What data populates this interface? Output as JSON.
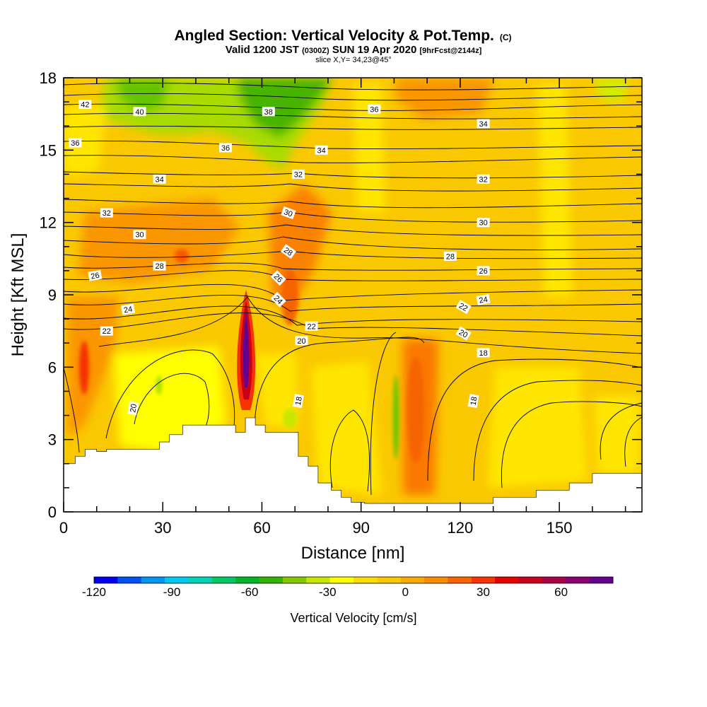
{
  "title": {
    "main": "Angled Section: Vertical Velocity & Pot.Temp.",
    "main_tag": "(C)",
    "valid_prefix": "Valid 1200 JST",
    "valid_utc": "(0300Z)",
    "valid_day": "SUN 19 Apr 2020",
    "fcst": "[9hrFcst@2144z]",
    "slice": "slice X,Y= 34,23@45°"
  },
  "colorbar": {
    "label": "Vertical Velocity [cm/s]",
    "tick_labels": [
      "-120",
      "-90",
      "-60",
      "-30",
      "0",
      "30",
      "60"
    ],
    "colors": [
      "#0000ee",
      "#0050f0",
      "#0096f0",
      "#00c8f0",
      "#00d2b4",
      "#00c864",
      "#00b428",
      "#32b400",
      "#82c800",
      "#c8e600",
      "#ffff00",
      "#fadc00",
      "#fac800",
      "#faaa00",
      "#fa8c00",
      "#fa6400",
      "#f53200",
      "#e60000",
      "#c8001e",
      "#aa0046",
      "#8c006e",
      "#64008c"
    ]
  },
  "chart_data": {
    "type": "heatmap",
    "title": "Angled Section: Vertical Velocity & Pot.Temp.",
    "xlabel": "Distance [nm]",
    "ylabel": "Height [Kft MSL]",
    "xlim": [
      0,
      175
    ],
    "ylim": [
      0,
      18
    ],
    "xticks": [
      0,
      30,
      60,
      90,
      120,
      150
    ],
    "yticks": [
      0,
      3,
      6,
      9,
      12,
      15,
      18
    ],
    "color_variable": "Vertical Velocity [cm/s]",
    "color_range": [
      -120,
      80
    ],
    "contour_variable": "Potential Temperature",
    "contour_labels": [
      {
        "text": "42",
        "x": 6.5,
        "y": 16.9,
        "rot": 0
      },
      {
        "text": "40",
        "x": 23,
        "y": 16.6,
        "rot": 0
      },
      {
        "text": "38",
        "x": 62,
        "y": 16.6,
        "rot": 0
      },
      {
        "text": "36",
        "x": 94,
        "y": 16.7,
        "rot": 0
      },
      {
        "text": "34",
        "x": 127,
        "y": 16.1,
        "rot": 0
      },
      {
        "text": "36",
        "x": 3.5,
        "y": 15.3,
        "rot": 0
      },
      {
        "text": "36",
        "x": 49,
        "y": 15.1,
        "rot": 0
      },
      {
        "text": "34",
        "x": 78,
        "y": 15.0,
        "rot": 0
      },
      {
        "text": "34",
        "x": 29,
        "y": 13.8,
        "rot": 0
      },
      {
        "text": "32",
        "x": 71,
        "y": 14.0,
        "rot": 0
      },
      {
        "text": "32",
        "x": 127,
        "y": 13.8,
        "rot": 0
      },
      {
        "text": "32",
        "x": 13,
        "y": 12.4,
        "rot": 0
      },
      {
        "text": "30",
        "x": 68,
        "y": 12.4,
        "rot": 20
      },
      {
        "text": "30",
        "x": 127,
        "y": 12.0,
        "rot": 0
      },
      {
        "text": "30",
        "x": 23,
        "y": 11.5,
        "rot": 0
      },
      {
        "text": "28",
        "x": 68,
        "y": 10.8,
        "rot": 35
      },
      {
        "text": "28",
        "x": 117,
        "y": 10.6,
        "rot": 0
      },
      {
        "text": "28",
        "x": 29,
        "y": 10.2,
        "rot": 0
      },
      {
        "text": "26",
        "x": 127,
        "y": 10.0,
        "rot": 0
      },
      {
        "text": "26",
        "x": 9.5,
        "y": 9.8,
        "rot": -10
      },
      {
        "text": "26",
        "x": 65,
        "y": 9.7,
        "rot": 45
      },
      {
        "text": "24",
        "x": 19.5,
        "y": 8.4,
        "rot": -10
      },
      {
        "text": "24",
        "x": 65,
        "y": 8.8,
        "rot": 45
      },
      {
        "text": "24",
        "x": 127,
        "y": 8.8,
        "rot": -10
      },
      {
        "text": "22",
        "x": 121,
        "y": 8.5,
        "rot": 30
      },
      {
        "text": "22",
        "x": 75,
        "y": 7.7,
        "rot": 0
      },
      {
        "text": "22",
        "x": 13,
        "y": 7.5,
        "rot": 0
      },
      {
        "text": "20",
        "x": 121,
        "y": 7.4,
        "rot": 30
      },
      {
        "text": "20",
        "x": 72,
        "y": 7.1,
        "rot": 0
      },
      {
        "text": "18",
        "x": 127,
        "y": 6.6,
        "rot": 0
      },
      {
        "text": "20",
        "x": 21,
        "y": 4.3,
        "rot": -80
      },
      {
        "text": "18",
        "x": 71,
        "y": 4.6,
        "rot": -80
      },
      {
        "text": "18",
        "x": 124,
        "y": 4.6,
        "rot": -80
      }
    ],
    "terrain": [
      [
        0,
        2.0
      ],
      [
        3.5,
        2.0
      ],
      [
        3.5,
        2.3
      ],
      [
        6.5,
        2.3
      ],
      [
        6.5,
        2.6
      ],
      [
        10,
        2.6
      ],
      [
        10,
        2.5
      ],
      [
        13,
        2.5
      ],
      [
        13,
        2.6
      ],
      [
        29,
        2.6
      ],
      [
        29,
        2.9
      ],
      [
        32,
        2.9
      ],
      [
        32,
        3.2
      ],
      [
        36,
        3.2
      ],
      [
        36,
        3.6
      ],
      [
        52,
        3.6
      ],
      [
        52,
        3.3
      ],
      [
        55,
        3.3
      ],
      [
        55,
        3.9
      ],
      [
        58,
        3.9
      ],
      [
        58,
        3.6
      ],
      [
        61,
        3.6
      ],
      [
        61,
        3.3
      ],
      [
        71,
        3.3
      ],
      [
        71,
        2.3
      ],
      [
        74,
        2.3
      ],
      [
        74,
        1.9
      ],
      [
        77,
        1.9
      ],
      [
        77,
        1.2
      ],
      [
        81,
        1.2
      ],
      [
        81,
        0.9
      ],
      [
        84,
        0.9
      ],
      [
        84,
        0.6
      ],
      [
        87,
        0.6
      ],
      [
        87,
        0.4
      ],
      [
        91,
        0.4
      ],
      [
        91,
        0.35
      ],
      [
        130,
        0.35
      ],
      [
        130,
        0.6
      ],
      [
        143,
        0.6
      ],
      [
        143,
        0.9
      ],
      [
        153,
        0.9
      ],
      [
        153,
        1.2
      ],
      [
        160,
        1.2
      ],
      [
        160,
        1.6
      ],
      [
        175,
        1.6
      ]
    ]
  }
}
